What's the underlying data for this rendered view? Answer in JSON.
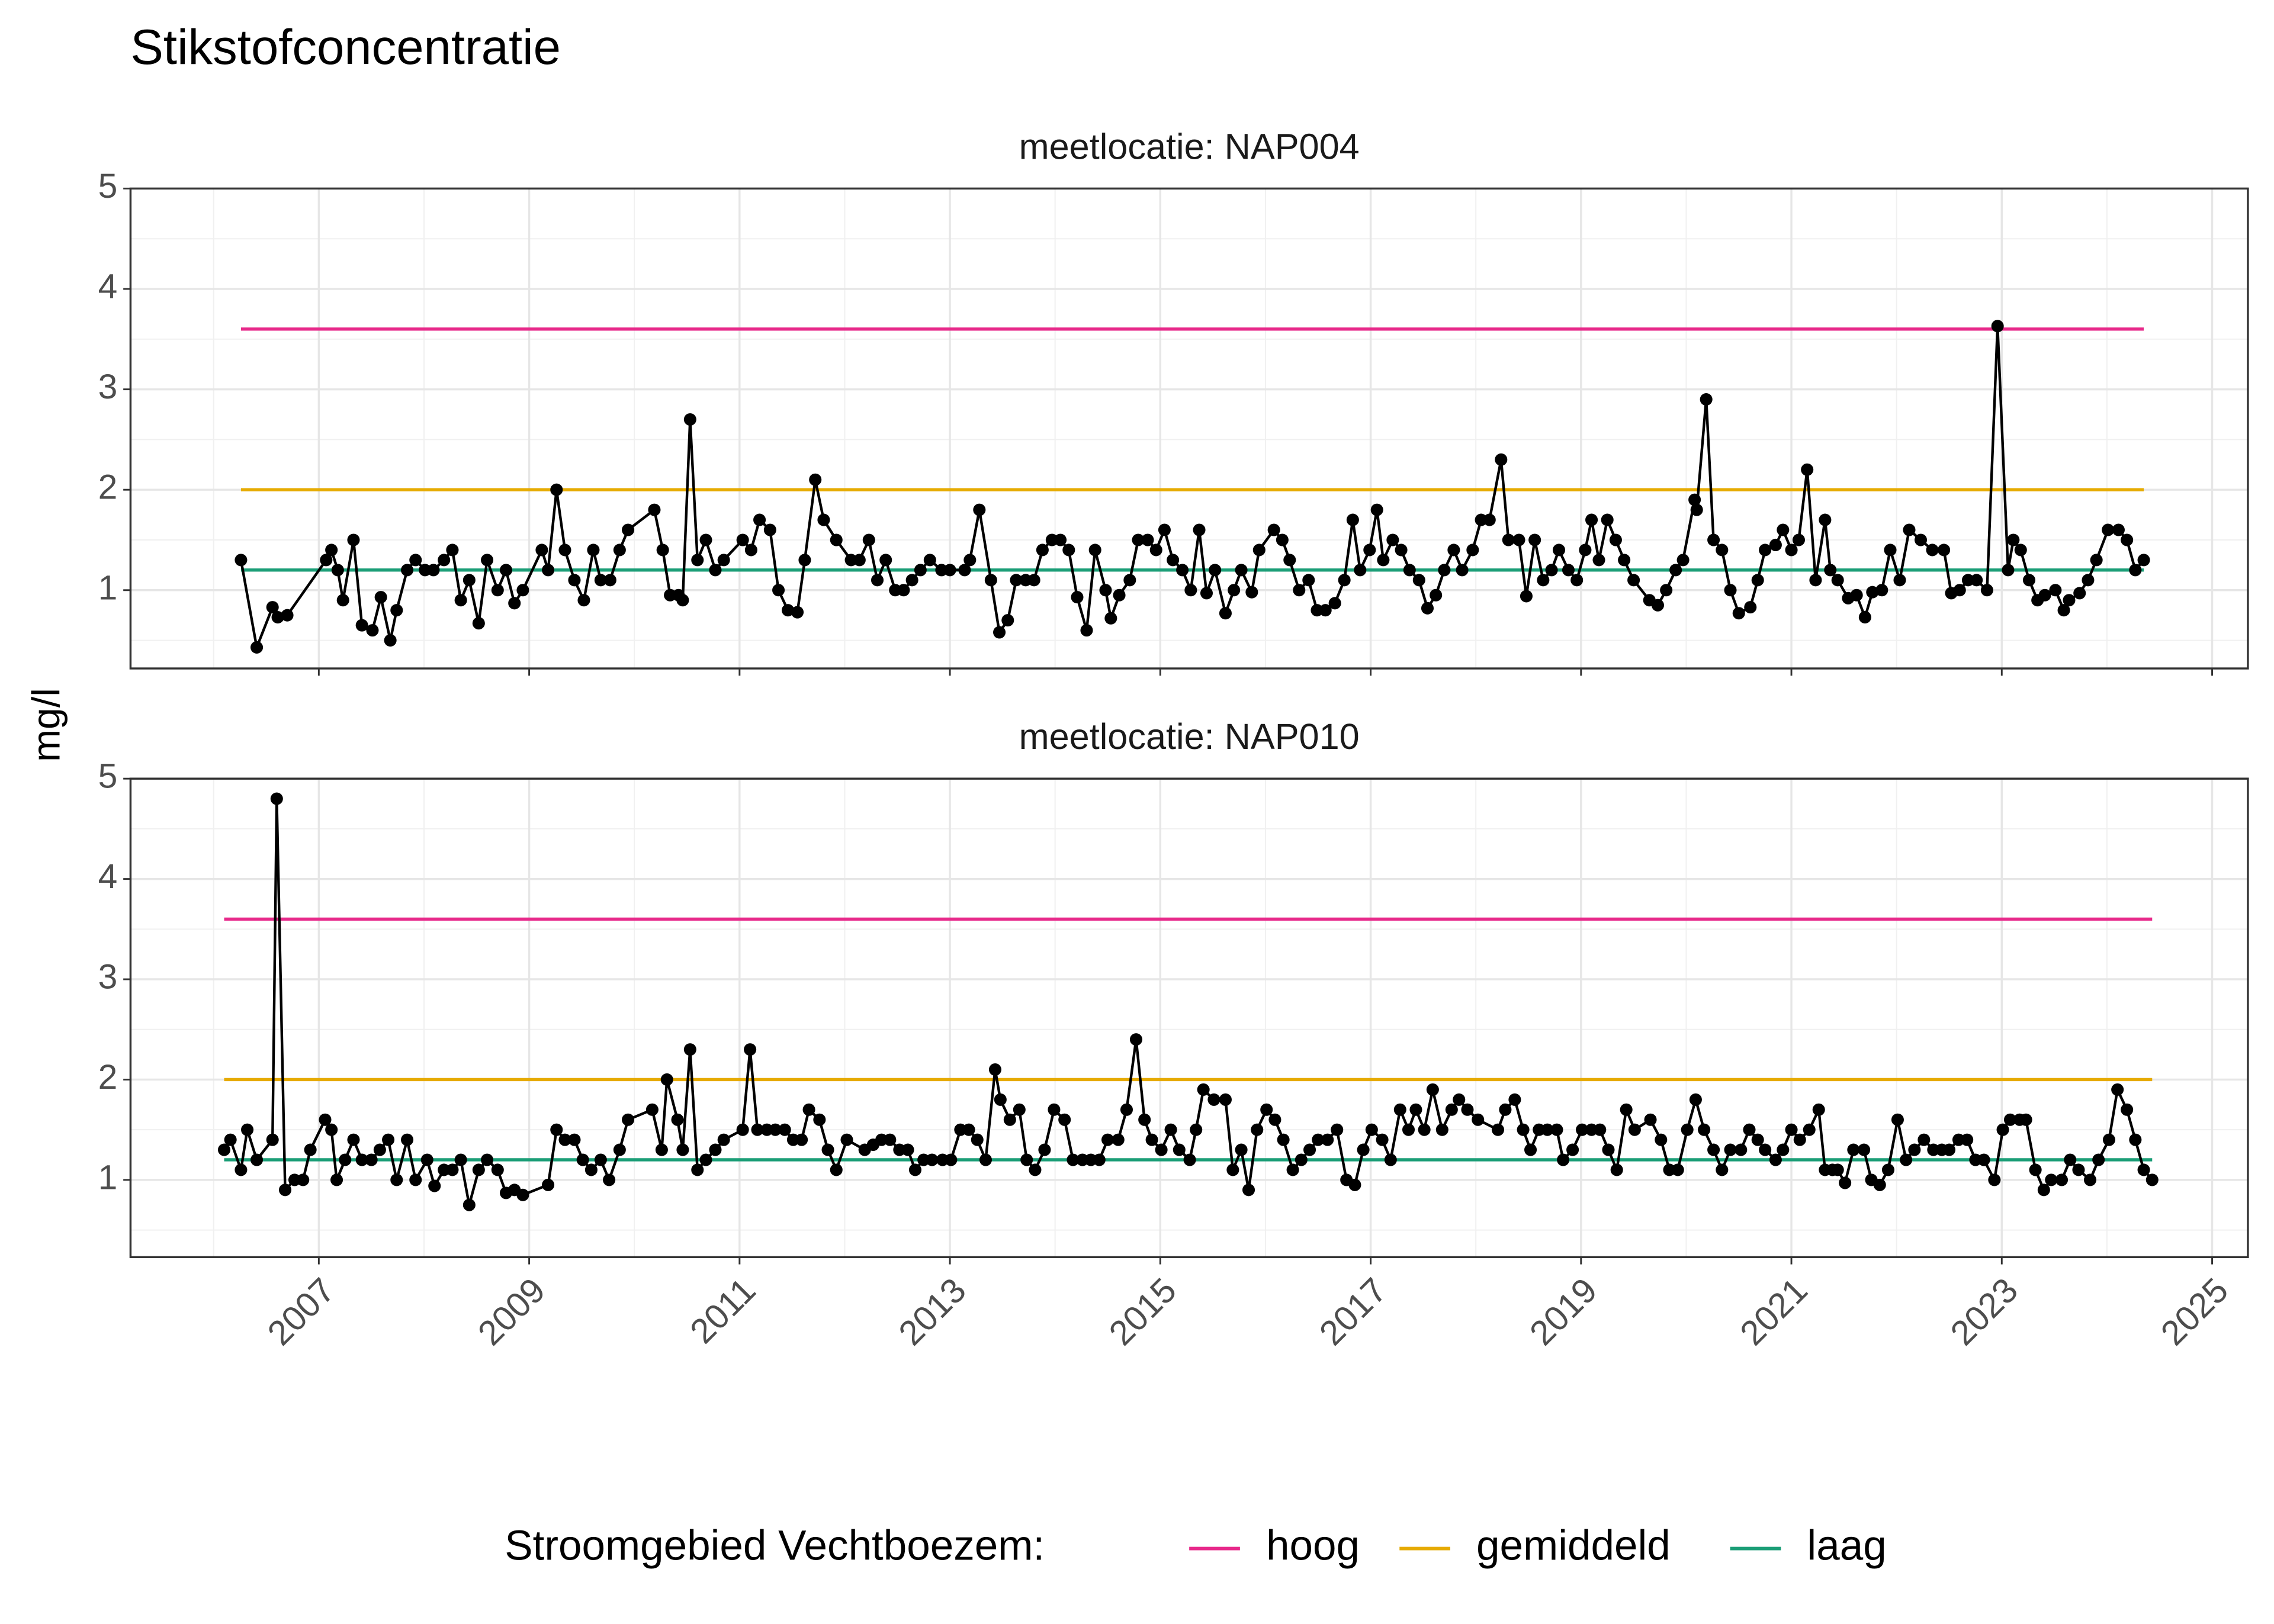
{
  "title": "Stikstofconcentratie",
  "y_label": "mg/l",
  "legend": {
    "title": "Stroomgebied Vechtboezem:",
    "position": "bottom"
  },
  "chart_data": [
    {
      "type": "line",
      "title": "meetlocatie: NAP004",
      "xlim": [
        2005.21,
        2025.34
      ],
      "xticks": [
        2007,
        2009,
        2011,
        2013,
        2015,
        2017,
        2019,
        2021,
        2023,
        2025
      ],
      "ylim": [
        0.22,
        5
      ],
      "yticks": [
        1,
        2,
        3,
        4,
        5
      ],
      "grid": true,
      "minor_grid": true,
      "series": [
        {
          "color": "#000000",
          "marker": "point",
          "x": [
            2006.26,
            2006.41,
            2006.56,
            2006.61,
            2006.7,
            2007.07,
            2007.12,
            2007.18,
            2007.23,
            2007.33,
            2007.41,
            2007.51,
            2007.59,
            2007.68,
            2007.74,
            2007.84,
            2007.92,
            2008.01,
            2008.09,
            2008.19,
            2008.27,
            2008.35,
            2008.43,
            2008.52,
            2008.6,
            2008.7,
            2008.78,
            2008.86,
            2008.94,
            2009.12,
            2009.18,
            2009.26,
            2009.34,
            2009.43,
            2009.52,
            2009.61,
            2009.68,
            2009.77,
            2009.86,
            2009.94,
            2010.19,
            2010.27,
            2010.34,
            2010.42,
            2010.46,
            2010.53,
            2010.6,
            2010.68,
            2010.77,
            2010.85,
            2011.03,
            2011.11,
            2011.19,
            2011.29,
            2011.37,
            2011.46,
            2011.55,
            2011.62,
            2011.72,
            2011.8,
            2011.92,
            2012.06,
            2012.14,
            2012.23,
            2012.31,
            2012.39,
            2012.48,
            2012.56,
            2012.64,
            2012.72,
            2012.81,
            2012.92,
            2013.0,
            2013.14,
            2013.19,
            2013.28,
            2013.39,
            2013.47,
            2013.55,
            2013.63,
            2013.72,
            2013.8,
            2013.88,
            2013.97,
            2014.05,
            2014.13,
            2014.21,
            2014.3,
            2014.38,
            2014.48,
            2014.53,
            2014.61,
            2014.71,
            2014.79,
            2014.88,
            2014.96,
            2015.04,
            2015.12,
            2015.21,
            2015.29,
            2015.37,
            2015.44,
            2015.52,
            2015.62,
            2015.7,
            2015.77,
            2015.87,
            2015.94,
            2016.08,
            2016.16,
            2016.23,
            2016.32,
            2016.41,
            2016.49,
            2016.57,
            2016.66,
            2016.75,
            2016.83,
            2016.9,
            2016.99,
            2017.06,
            2017.12,
            2017.21,
            2017.29,
            2017.37,
            2017.46,
            2017.54,
            2017.62,
            2017.7,
            2017.79,
            2017.87,
            2017.97,
            2018.05,
            2018.13,
            2018.24,
            2018.31,
            2018.41,
            2018.48,
            2018.56,
            2018.64,
            2018.72,
            2018.79,
            2018.88,
            2018.96,
            2019.04,
            2019.1,
            2019.17,
            2019.25,
            2019.33,
            2019.41,
            2019.5,
            2019.65,
            2019.73,
            2019.81,
            2019.9,
            2019.97,
            2020.08,
            2020.1,
            2020.19,
            2020.26,
            2020.34,
            2020.42,
            2020.5,
            2020.61,
            2020.68,
            2020.75,
            2020.85,
            2020.92,
            2021.0,
            2021.07,
            2021.15,
            2021.23,
            2021.32,
            2021.37,
            2021.44,
            2021.54,
            2021.62,
            2021.7,
            2021.77,
            2021.86,
            2021.94,
            2022.03,
            2022.12,
            2022.23,
            2022.34,
            2022.45,
            2022.52,
            2022.6,
            2022.68,
            2022.76,
            2022.86,
            2022.96,
            2023.06,
            2023.11,
            2023.18,
            2023.26,
            2023.34,
            2023.41,
            2023.51,
            2023.59,
            2023.64,
            2023.74,
            2023.82,
            2023.9,
            2024.01,
            2024.11,
            2024.19,
            2024.27,
            2024.35
          ],
          "values": [
            1.3,
            0.43,
            0.83,
            0.73,
            0.75,
            1.3,
            1.4,
            1.2,
            0.9,
            1.5,
            0.65,
            0.6,
            0.93,
            0.5,
            0.8,
            1.2,
            1.3,
            1.2,
            1.2,
            1.3,
            1.4,
            0.9,
            1.1,
            0.67,
            1.3,
            1.0,
            1.2,
            0.87,
            1.0,
            1.4,
            1.2,
            2.0,
            1.4,
            1.1,
            0.9,
            1.4,
            1.1,
            1.1,
            1.4,
            1.6,
            1.8,
            1.4,
            0.95,
            0.95,
            0.9,
            2.7,
            1.3,
            1.5,
            1.2,
            1.3,
            1.5,
            1.4,
            1.7,
            1.6,
            1.0,
            0.8,
            0.78,
            1.3,
            2.1,
            1.7,
            1.5,
            1.3,
            1.3,
            1.5,
            1.1,
            1.3,
            1.0,
            1.0,
            1.1,
            1.2,
            1.3,
            1.2,
            1.2,
            1.2,
            1.3,
            1.8,
            1.1,
            0.58,
            0.7,
            1.1,
            1.1,
            1.1,
            1.4,
            1.5,
            1.5,
            1.4,
            0.93,
            0.6,
            1.4,
            1.0,
            0.72,
            0.95,
            1.1,
            1.5,
            1.5,
            1.4,
            1.6,
            1.3,
            1.2,
            1.0,
            1.6,
            0.97,
            1.2,
            0.77,
            1.0,
            1.2,
            0.98,
            1.4,
            1.6,
            1.5,
            1.3,
            1.0,
            1.1,
            0.8,
            0.8,
            0.87,
            1.1,
            1.7,
            1.2,
            1.4,
            1.8,
            1.3,
            1.5,
            1.4,
            1.2,
            1.1,
            0.82,
            0.95,
            1.2,
            1.4,
            1.2,
            1.4,
            1.7,
            1.7,
            2.3,
            1.5,
            1.5,
            0.94,
            1.5,
            1.1,
            1.2,
            1.4,
            1.2,
            1.1,
            1.4,
            1.7,
            1.3,
            1.7,
            1.5,
            1.3,
            1.1,
            0.9,
            0.85,
            1.0,
            1.2,
            1.3,
            1.9,
            1.8,
            2.9,
            1.5,
            1.4,
            1.0,
            0.77,
            0.83,
            1.1,
            1.4,
            1.45,
            1.6,
            1.4,
            1.5,
            2.2,
            1.1,
            1.7,
            1.2,
            1.1,
            0.92,
            0.95,
            0.73,
            0.98,
            1.0,
            1.4,
            1.1,
            1.6,
            1.5,
            1.4,
            1.4,
            0.97,
            1.0,
            1.1,
            1.1,
            1.0,
            3.63,
            1.2,
            1.5,
            1.4,
            1.1,
            0.9,
            0.95,
            1.0,
            0.8,
            0.9,
            0.97,
            1.1,
            1.3,
            1.6,
            1.6,
            1.5,
            1.2,
            1.3
          ]
        },
        {
          "name": "hoog",
          "color": "#e7298a",
          "x": [
            2006.26,
            2024.35
          ],
          "values": [
            3.6,
            3.6
          ]
        },
        {
          "name": "gemiddeld",
          "color": "#e6ab02",
          "x": [
            2006.26,
            2024.35
          ],
          "values": [
            2.0,
            2.0
          ]
        },
        {
          "name": "laag",
          "color": "#1b9e77",
          "x": [
            2006.26,
            2024.35
          ],
          "values": [
            1.2,
            1.2
          ]
        }
      ]
    },
    {
      "type": "line",
      "title": "meetlocatie: NAP010",
      "xlim": [
        2005.21,
        2025.34
      ],
      "xticks": [
        2007,
        2009,
        2011,
        2013,
        2015,
        2017,
        2019,
        2021,
        2023,
        2025
      ],
      "ylim": [
        0.23,
        5
      ],
      "yticks": [
        1,
        2,
        3,
        4,
        5
      ],
      "grid": true,
      "minor_grid": true,
      "series": [
        {
          "color": "#000000",
          "marker": "point",
          "x": [
            2006.1,
            2006.16,
            2006.26,
            2006.32,
            2006.41,
            2006.56,
            2006.6,
            2006.68,
            2006.77,
            2006.85,
            2006.92,
            2007.06,
            2007.12,
            2007.17,
            2007.25,
            2007.33,
            2007.41,
            2007.5,
            2007.58,
            2007.66,
            2007.74,
            2007.84,
            2007.92,
            2008.03,
            2008.1,
            2008.19,
            2008.27,
            2008.35,
            2008.43,
            2008.52,
            2008.6,
            2008.7,
            2008.78,
            2008.86,
            2008.94,
            2009.18,
            2009.26,
            2009.34,
            2009.43,
            2009.51,
            2009.59,
            2009.68,
            2009.76,
            2009.86,
            2009.94,
            2010.17,
            2010.26,
            2010.31,
            2010.41,
            2010.46,
            2010.53,
            2010.6,
            2010.68,
            2010.77,
            2010.85,
            2011.03,
            2011.1,
            2011.17,
            2011.26,
            2011.34,
            2011.43,
            2011.51,
            2011.59,
            2011.66,
            2011.76,
            2011.84,
            2011.92,
            2012.02,
            2012.19,
            2012.27,
            2012.35,
            2012.43,
            2012.52,
            2012.6,
            2012.67,
            2012.75,
            2012.83,
            2012.93,
            2013.01,
            2013.1,
            2013.18,
            2013.26,
            2013.34,
            2013.43,
            2013.48,
            2013.57,
            2013.66,
            2013.73,
            2013.81,
            2013.9,
            2013.99,
            2014.09,
            2014.17,
            2014.26,
            2014.34,
            2014.42,
            2014.5,
            2014.6,
            2014.68,
            2014.77,
            2014.85,
            2014.92,
            2015.01,
            2015.1,
            2015.18,
            2015.28,
            2015.34,
            2015.41,
            2015.51,
            2015.62,
            2015.69,
            2015.77,
            2015.84,
            2015.92,
            2016.01,
            2016.09,
            2016.17,
            2016.26,
            2016.34,
            2016.42,
            2016.5,
            2016.59,
            2016.68,
            2016.77,
            2016.85,
            2016.93,
            2017.01,
            2017.11,
            2017.19,
            2017.28,
            2017.36,
            2017.43,
            2017.51,
            2017.59,
            2017.68,
            2017.77,
            2017.84,
            2017.92,
            2018.02,
            2018.21,
            2018.28,
            2018.37,
            2018.45,
            2018.52,
            2018.6,
            2018.68,
            2018.77,
            2018.83,
            2018.92,
            2019.01,
            2019.1,
            2019.18,
            2019.26,
            2019.34,
            2019.43,
            2019.51,
            2019.66,
            2019.76,
            2019.84,
            2019.92,
            2020.01,
            2020.09,
            2020.17,
            2020.26,
            2020.34,
            2020.42,
            2020.52,
            2020.6,
            2020.68,
            2020.75,
            2020.85,
            2020.92,
            2021.0,
            2021.08,
            2021.17,
            2021.26,
            2021.32,
            2021.39,
            2021.44,
            2021.51,
            2021.59,
            2021.69,
            2021.76,
            2021.84,
            2021.92,
            2022.01,
            2022.09,
            2022.17,
            2022.26,
            2022.35,
            2022.43,
            2022.5,
            2022.59,
            2022.67,
            2022.75,
            2022.83,
            2022.93,
            2023.01,
            2023.08,
            2023.17,
            2023.23,
            2023.32,
            2023.4,
            2023.47,
            2023.57,
            2023.65,
            2023.73,
            2023.84,
            2023.92,
            2024.02,
            2024.1,
            2024.19,
            2024.27,
            2024.35,
            2024.43
          ],
          "values": [
            1.3,
            1.4,
            1.1,
            1.5,
            1.2,
            1.4,
            4.8,
            0.9,
            1.0,
            1.0,
            1.3,
            1.6,
            1.5,
            1.0,
            1.2,
            1.4,
            1.2,
            1.2,
            1.3,
            1.4,
            1.0,
            1.4,
            1.0,
            1.2,
            0.94,
            1.1,
            1.1,
            1.2,
            0.75,
            1.1,
            1.2,
            1.1,
            0.87,
            0.9,
            0.85,
            0.95,
            1.5,
            1.4,
            1.4,
            1.2,
            1.1,
            1.2,
            1.0,
            1.3,
            1.6,
            1.7,
            1.3,
            2.0,
            1.6,
            1.3,
            2.3,
            1.1,
            1.2,
            1.3,
            1.4,
            1.5,
            2.3,
            1.5,
            1.5,
            1.5,
            1.5,
            1.4,
            1.4,
            1.7,
            1.6,
            1.3,
            1.1,
            1.4,
            1.3,
            1.35,
            1.4,
            1.4,
            1.3,
            1.3,
            1.1,
            1.2,
            1.2,
            1.2,
            1.2,
            1.5,
            1.5,
            1.4,
            1.2,
            2.1,
            1.8,
            1.6,
            1.7,
            1.2,
            1.1,
            1.3,
            1.7,
            1.6,
            1.2,
            1.2,
            1.2,
            1.2,
            1.4,
            1.4,
            1.7,
            2.4,
            1.6,
            1.4,
            1.3,
            1.5,
            1.3,
            1.2,
            1.5,
            1.9,
            1.8,
            1.8,
            1.1,
            1.3,
            0.9,
            1.5,
            1.7,
            1.6,
            1.4,
            1.1,
            1.2,
            1.3,
            1.4,
            1.4,
            1.5,
            1.0,
            0.95,
            1.3,
            1.5,
            1.4,
            1.2,
            1.7,
            1.5,
            1.7,
            1.5,
            1.9,
            1.5,
            1.7,
            1.8,
            1.7,
            1.6,
            1.5,
            1.7,
            1.8,
            1.5,
            1.3,
            1.5,
            1.5,
            1.5,
            1.2,
            1.3,
            1.5,
            1.5,
            1.5,
            1.3,
            1.1,
            1.7,
            1.5,
            1.6,
            1.4,
            1.1,
            1.1,
            1.5,
            1.8,
            1.5,
            1.3,
            1.1,
            1.3,
            1.3,
            1.5,
            1.4,
            1.3,
            1.2,
            1.3,
            1.5,
            1.4,
            1.5,
            1.7,
            1.1,
            1.1,
            1.1,
            0.97,
            1.3,
            1.3,
            1.0,
            0.95,
            1.1,
            1.6,
            1.2,
            1.3,
            1.4,
            1.3,
            1.3,
            1.3,
            1.4,
            1.4,
            1.2,
            1.2,
            1.0,
            1.5,
            1.6,
            1.6,
            1.6,
            1.1,
            0.9,
            1.0,
            1.0,
            1.2,
            1.1,
            1.0,
            1.2,
            1.4,
            1.9,
            1.7,
            1.4,
            1.1,
            1.0
          ]
        },
        {
          "name": "hoog",
          "color": "#e7298a",
          "x": [
            2006.1,
            2024.43
          ],
          "values": [
            3.6,
            3.6
          ]
        },
        {
          "name": "gemiddeld",
          "color": "#e6ab02",
          "x": [
            2006.1,
            2024.43
          ],
          "values": [
            2.0,
            2.0
          ]
        },
        {
          "name": "laag",
          "color": "#1b9e77",
          "x": [
            2006.1,
            2024.43
          ],
          "values": [
            1.2,
            1.2
          ]
        }
      ]
    }
  ]
}
